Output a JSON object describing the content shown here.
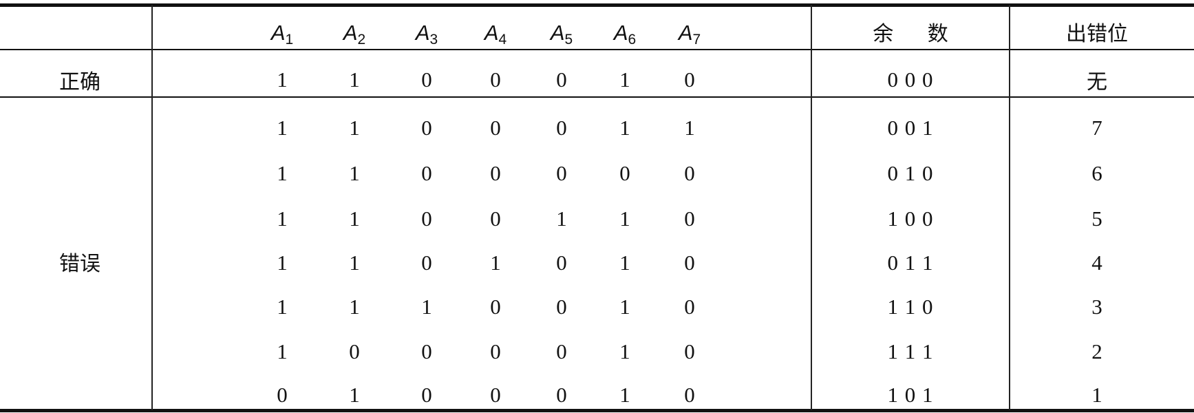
{
  "table": {
    "bit_headers": [
      {
        "base": "A",
        "sub": "1"
      },
      {
        "base": "A",
        "sub": "2"
      },
      {
        "base": "A",
        "sub": "3"
      },
      {
        "base": "A",
        "sub": "4"
      },
      {
        "base": "A",
        "sub": "5"
      },
      {
        "base": "A",
        "sub": "6"
      },
      {
        "base": "A",
        "sub": "7"
      }
    ],
    "remainder_header": "余 数",
    "error_header": "出错位",
    "correct": {
      "label": "正确",
      "bits": [
        1,
        1,
        0,
        0,
        0,
        1,
        0
      ],
      "remainder": "0 0 0",
      "error_bit": "无"
    },
    "errors": {
      "label": "错误",
      "rows": [
        {
          "bits": [
            1,
            1,
            0,
            0,
            0,
            1,
            1
          ],
          "remainder": "0 0 1",
          "error_bit": 7
        },
        {
          "bits": [
            1,
            1,
            0,
            0,
            0,
            0,
            0
          ],
          "remainder": "0 1 0",
          "error_bit": 6
        },
        {
          "bits": [
            1,
            1,
            0,
            0,
            1,
            1,
            0
          ],
          "remainder": "1 0 0",
          "error_bit": 5
        },
        {
          "bits": [
            1,
            1,
            0,
            1,
            0,
            1,
            0
          ],
          "remainder": "0 1 1",
          "error_bit": 4
        },
        {
          "bits": [
            1,
            1,
            1,
            0,
            0,
            1,
            0
          ],
          "remainder": "1 1 0",
          "error_bit": 3
        },
        {
          "bits": [
            1,
            0,
            0,
            0,
            0,
            1,
            0
          ],
          "remainder": "1 1 1",
          "error_bit": 2
        },
        {
          "bits": [
            0,
            1,
            0,
            0,
            0,
            1,
            0
          ],
          "remainder": "1 0 1",
          "error_bit": 1
        }
      ]
    }
  }
}
